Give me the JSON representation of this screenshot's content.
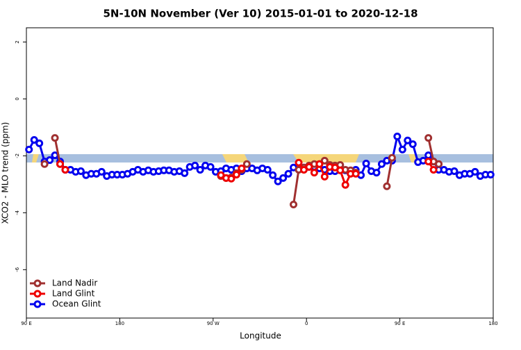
{
  "chart_data": {
    "type": "line",
    "title": "5N-10N November (Ver 10)   2015-01-01 to 2020-12-18",
    "xlabel": "Longitude",
    "ylabel": "XCO2 - MLO trend (ppm)",
    "xlim": [
      -270,
      180
    ],
    "ylim": [
      -7.7,
      2.5
    ],
    "xticks": [
      {
        "value": -270,
        "label": "90 E"
      },
      {
        "value": -180,
        "label": "180"
      },
      {
        "value": -90,
        "label": "90 W"
      },
      0,
      {
        "value": 90,
        "label": "90 E"
      },
      180
    ],
    "yticks": [
      2,
      0,
      -2,
      -4,
      -6
    ],
    "legend": "bottom-left",
    "x": [
      -267.5,
      -262.5,
      -257.5,
      -252.5,
      -247.5,
      -242.5,
      -237.5,
      -232.5,
      -227.5,
      -222.5,
      -217.5,
      -212.5,
      -207.5,
      -202.5,
      -197.5,
      -192.5,
      -187.5,
      -182.5,
      -177.5,
      -172.5,
      -167.5,
      -162.5,
      -157.5,
      -152.5,
      -147.5,
      -142.5,
      -137.5,
      -132.5,
      -127.5,
      -122.5,
      -117.5,
      -112.5,
      -107.5,
      -102.5,
      -97.5,
      -92.5,
      -87.5,
      -82.5,
      -77.5,
      -72.5,
      -67.5,
      -62.5,
      -57.5,
      -52.5,
      -47.5,
      -42.5,
      -37.5,
      -32.5,
      -27.5,
      -22.5,
      -17.5,
      -12.5,
      -7.5,
      -2.5,
      2.5,
      7.5,
      12.5,
      17.5,
      22.5,
      27.5,
      32.5,
      37.5,
      42.5,
      47.5,
      52.5,
      57.5,
      62.5,
      67.5,
      72.5,
      77.5,
      82.5,
      87.5,
      92.5,
      97.5,
      102.5,
      107.5,
      112.5,
      117.5,
      122.5,
      127.5,
      132.5,
      137.5,
      142.5,
      147.5,
      152.5,
      157.5,
      162.5,
      167.5,
      172.5,
      177.5
    ],
    "series": [
      {
        "name": "Ocean Glint",
        "color": "#0000ee",
        "values": [
          -1.78,
          -1.44,
          -1.56,
          -2.2,
          -2.15,
          -1.98,
          -2.2,
          -2.49,
          -2.49,
          -2.56,
          -2.54,
          -2.68,
          -2.63,
          -2.63,
          -2.56,
          -2.71,
          -2.66,
          -2.66,
          -2.66,
          -2.63,
          -2.56,
          -2.49,
          -2.56,
          -2.51,
          -2.56,
          -2.54,
          -2.51,
          -2.51,
          -2.56,
          -2.54,
          -2.61,
          -2.39,
          -2.34,
          -2.49,
          -2.34,
          -2.39,
          -2.56,
          -2.54,
          -2.44,
          -2.49,
          -2.44,
          -2.54,
          -2.44,
          -2.44,
          -2.51,
          -2.44,
          -2.49,
          -2.68,
          -2.9,
          -2.78,
          -2.63,
          -2.41,
          -2.34,
          -2.41,
          -2.39,
          -2.39,
          -2.44,
          -2.49,
          -2.54,
          -2.54,
          -2.49,
          -2.51,
          -2.54,
          -2.49,
          -2.68,
          -2.27,
          -2.54,
          -2.59,
          -2.29,
          -2.17,
          -2.17,
          -1.32,
          -1.78,
          -1.46,
          -1.59,
          -2.22,
          -2.17,
          -1.98,
          -2.2,
          -2.49,
          -2.49,
          -2.56,
          -2.54,
          -2.68,
          -2.63,
          -2.63,
          -2.56,
          -2.71,
          -2.66,
          -2.66
        ]
      },
      {
        "name": "Land Nadir",
        "color": "#a03030",
        "values": [
          null,
          null,
          null,
          -2.29,
          null,
          -1.37,
          -2.29,
          null,
          null,
          null,
          null,
          null,
          null,
          null,
          null,
          null,
          null,
          null,
          null,
          null,
          null,
          null,
          null,
          null,
          null,
          null,
          null,
          null,
          null,
          null,
          null,
          null,
          null,
          null,
          null,
          null,
          null,
          -2.71,
          -2.78,
          -2.76,
          -2.61,
          -2.49,
          -2.29,
          null,
          null,
          null,
          null,
          null,
          null,
          null,
          null,
          -3.71,
          -2.49,
          -2.41,
          -2.34,
          -2.29,
          -2.29,
          -2.17,
          -2.32,
          -2.34,
          -2.32,
          -2.49,
          -2.51,
          -2.59,
          null,
          null,
          null,
          null,
          null,
          -3.07,
          -2.07,
          null,
          null,
          null,
          null,
          null,
          null,
          -1.37,
          -2.2,
          -2.29,
          null,
          null,
          null,
          null,
          null,
          null,
          null,
          null,
          null,
          null
        ]
      },
      {
        "name": "Land Glint",
        "color": "#ee0000",
        "values": [
          null,
          null,
          null,
          null,
          null,
          null,
          -2.29,
          -2.49,
          null,
          null,
          null,
          null,
          null,
          null,
          null,
          null,
          null,
          null,
          null,
          null,
          null,
          null,
          null,
          null,
          null,
          null,
          null,
          null,
          null,
          null,
          null,
          null,
          null,
          null,
          null,
          null,
          null,
          -2.68,
          -2.78,
          -2.8,
          -2.66,
          -2.44,
          null,
          null,
          null,
          null,
          null,
          null,
          null,
          null,
          null,
          null,
          -2.24,
          -2.49,
          -2.39,
          -2.59,
          -2.29,
          -2.73,
          -2.39,
          -2.41,
          -2.51,
          -3.02,
          -2.63,
          -2.63,
          null,
          null,
          null,
          null,
          null,
          null,
          null,
          null,
          null,
          null,
          null,
          null,
          null,
          -2.2,
          -2.49,
          null,
          null,
          null,
          null,
          null,
          null,
          null,
          null,
          null,
          null,
          null
        ]
      }
    ]
  }
}
